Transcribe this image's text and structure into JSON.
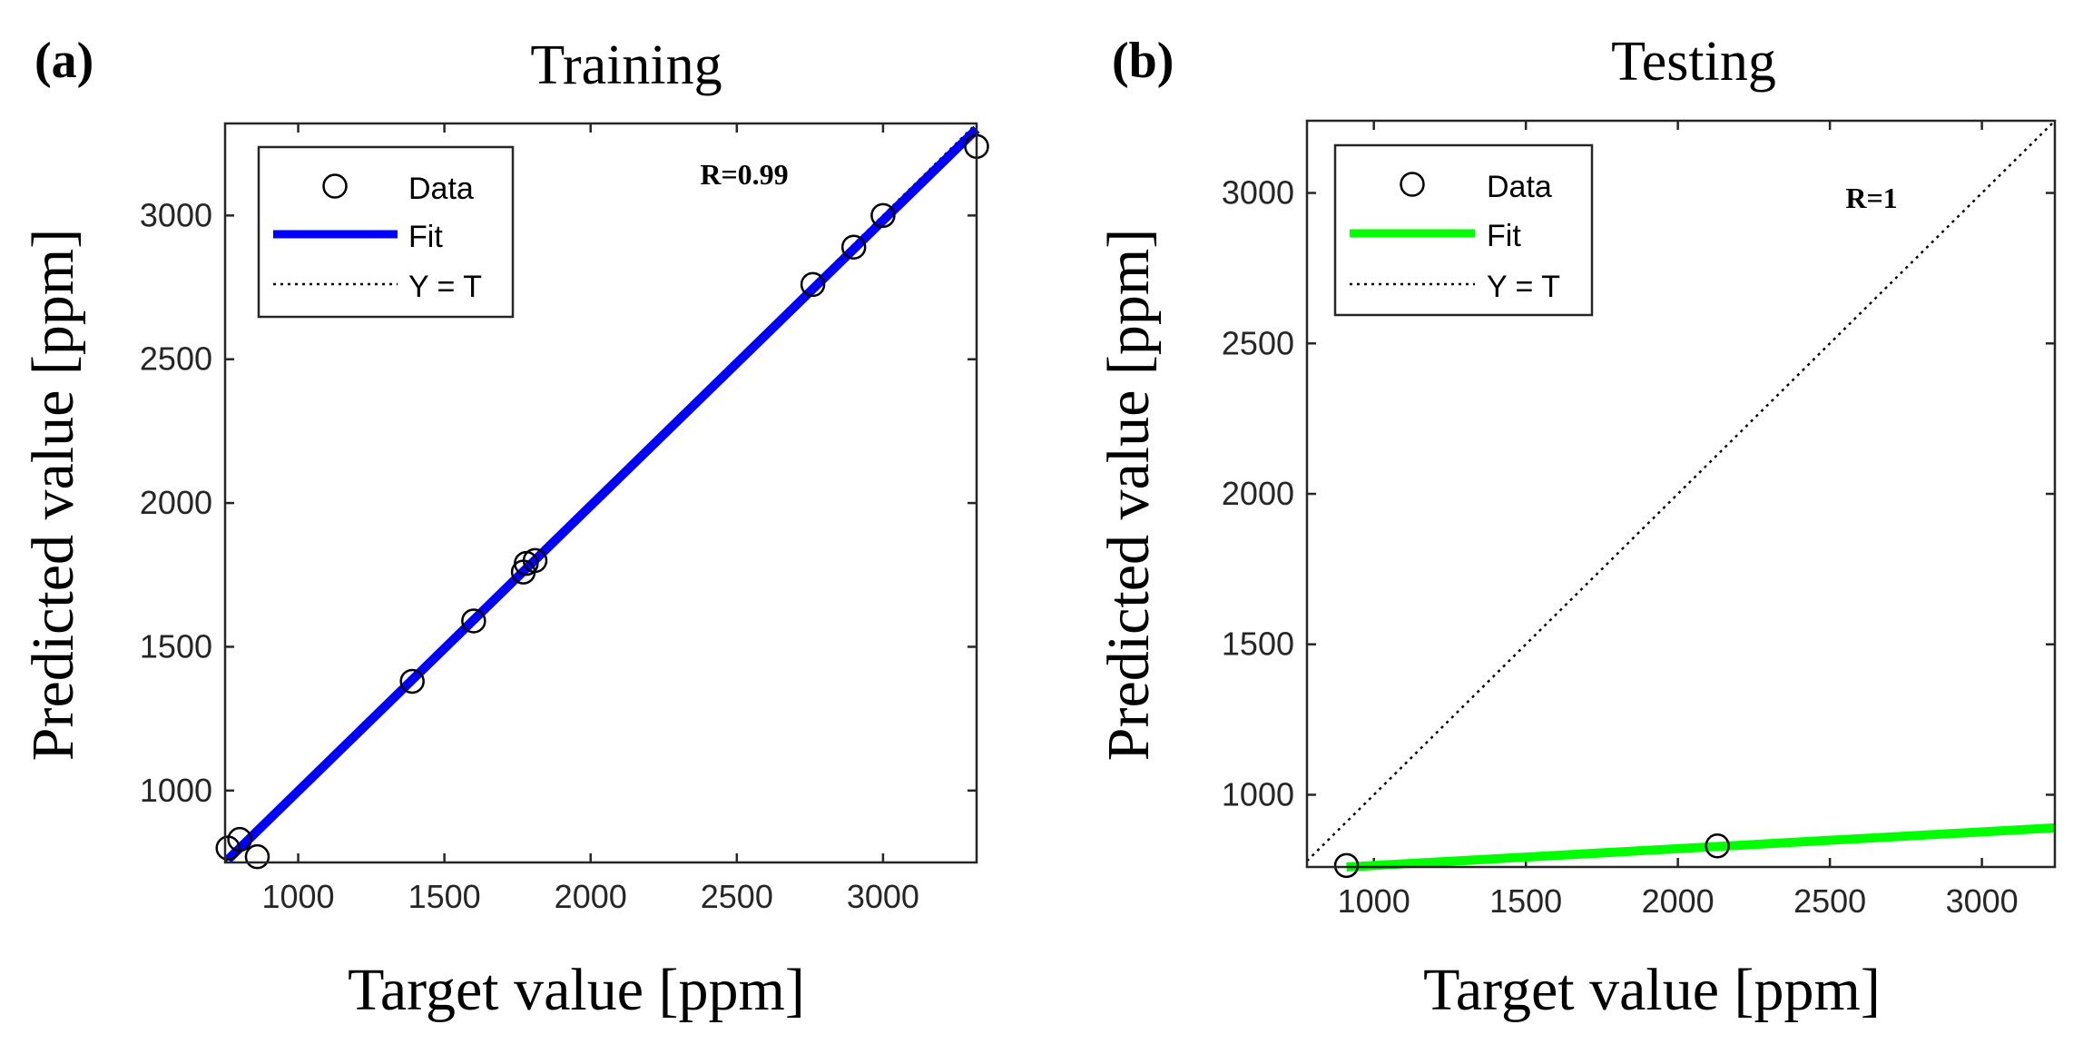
{
  "colors": {
    "axis": "#262626",
    "training_fit": "#0000ff",
    "testing_fit": "#00ff00",
    "identity": "#000000",
    "marker": "#000000"
  },
  "chart_data": [
    {
      "type": "scatter",
      "panel_label": "(a)",
      "title": "Training",
      "xlabel": "Target value [ppm]",
      "ylabel": "Predicted value [ppm]",
      "xlim": [
        750,
        3320
      ],
      "ylim": [
        750,
        3320
      ],
      "xticks": [
        1000,
        1500,
        2000,
        2500,
        3000
      ],
      "yticks": [
        1000,
        1500,
        2000,
        2500,
        3000
      ],
      "annotation": "R=0.99",
      "legend": {
        "placement": "top-left",
        "entries": [
          "Data",
          "Fit",
          "Y = T"
        ]
      },
      "series": [
        {
          "name": "Data",
          "x": [
            760,
            800,
            860,
            1390,
            1600,
            1770,
            1780,
            1810,
            2760,
            2900,
            3000,
            3320
          ],
          "y": [
            800,
            830,
            770,
            1380,
            1590,
            1760,
            1790,
            1800,
            2760,
            2890,
            3000,
            3240
          ]
        },
        {
          "name": "Fit",
          "x": [
            760,
            3320
          ],
          "y": [
            760,
            3300
          ]
        },
        {
          "name": "Y = T",
          "x": [
            750,
            3320
          ],
          "y": [
            750,
            3320
          ]
        }
      ]
    },
    {
      "type": "scatter",
      "panel_label": "(b)",
      "title": "Testing",
      "xlabel": "Target value [ppm]",
      "ylabel": "Predicted value [ppm]",
      "xlim": [
        780,
        3240
      ],
      "ylim": [
        760,
        3240
      ],
      "xticks": [
        1000,
        1500,
        2000,
        2500,
        3000
      ],
      "yticks": [
        1000,
        1500,
        2000,
        2500,
        3000
      ],
      "annotation": "R=1",
      "legend": {
        "placement": "top-left",
        "entries": [
          "Data",
          "Fit",
          "Y = T"
        ]
      },
      "series": [
        {
          "name": "Data",
          "x": [
            910,
            2130
          ],
          "y": [
            765,
            830
          ]
        },
        {
          "name": "Fit",
          "x": [
            910,
            3240
          ],
          "y": [
            760,
            890
          ]
        },
        {
          "name": "Y = T",
          "x": [
            780,
            3240
          ],
          "y": [
            780,
            3240
          ]
        }
      ]
    }
  ]
}
